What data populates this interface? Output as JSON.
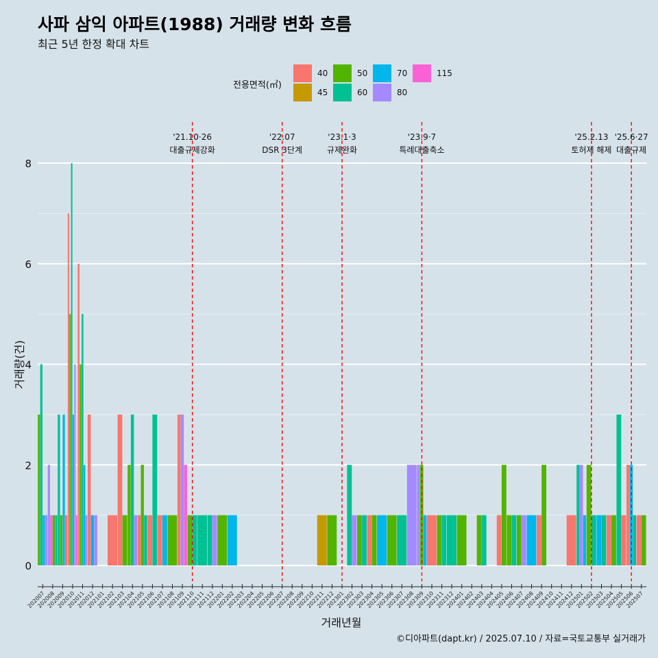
{
  "chart_data": {
    "type": "bar",
    "title": "사파 삼익 아파트(1988) 거래량 변화 흐름",
    "subtitle": "최근 5년 한정 확대 차트",
    "xlabel": "거래년월",
    "ylabel": "거래량(건)",
    "caption": "©디아파트(dapt.kr) / 2025.07.10 / 자료=국토교통부 실거래가",
    "ylim": [
      0,
      8
    ],
    "yticks": [
      0,
      2,
      4,
      6,
      8
    ],
    "legend": {
      "title": "전용면적(㎡)",
      "entries": [
        {
          "name": "40",
          "color": "#f8766d"
        },
        {
          "name": "45",
          "color": "#c49a00"
        },
        {
          "name": "50",
          "color": "#53b400"
        },
        {
          "name": "60",
          "color": "#00c094"
        },
        {
          "name": "70",
          "color": "#00b6eb"
        },
        {
          "name": "80",
          "color": "#a58aff"
        },
        {
          "name": "115",
          "color": "#fb61d7"
        }
      ]
    },
    "categories": [
      "202007",
      "202008",
      "202009",
      "202010",
      "202011",
      "202012",
      "202101",
      "202102",
      "202103",
      "202104",
      "202105",
      "202106",
      "202107",
      "202108",
      "202109",
      "202110",
      "202111",
      "202112",
      "202201",
      "202202",
      "202203",
      "202204",
      "202205",
      "202206",
      "202207",
      "202208",
      "202209",
      "202210",
      "202211",
      "202212",
      "202301",
      "202302",
      "202303",
      "202304",
      "202305",
      "202306",
      "202307",
      "202308",
      "202309",
      "202310",
      "202311",
      "202312",
      "202401",
      "202402",
      "202403",
      "202404",
      "202405",
      "202406",
      "202407",
      "202408",
      "202409",
      "202410",
      "202411",
      "202412",
      "202501",
      "202502",
      "202503",
      "202504",
      "202505",
      "202506",
      "202507"
    ],
    "data": [
      {
        "month": "202007",
        "bars": [
          [
            "50",
            3
          ],
          [
            "60",
            4
          ],
          [
            "70",
            1
          ],
          [
            "80",
            1
          ]
        ]
      },
      {
        "month": "202008",
        "bars": [
          [
            "80",
            2
          ],
          [
            "115",
            1
          ],
          [
            "50",
            1
          ],
          [
            "60",
            1
          ]
        ]
      },
      {
        "month": "202009",
        "bars": [
          [
            "60",
            3
          ],
          [
            "50",
            1
          ],
          [
            "70",
            3
          ],
          [
            "40",
            1
          ]
        ]
      },
      {
        "month": "202010",
        "bars": [
          [
            "40",
            7
          ],
          [
            "50",
            5
          ],
          [
            "60",
            8
          ],
          [
            "70",
            3
          ],
          [
            "80",
            4
          ],
          [
            "115",
            1
          ]
        ]
      },
      {
        "month": "202011",
        "bars": [
          [
            "40",
            6
          ],
          [
            "50",
            4
          ],
          [
            "60",
            5
          ],
          [
            "70",
            2
          ],
          [
            "80",
            1
          ]
        ]
      },
      {
        "month": "202012",
        "bars": [
          [
            "40",
            3
          ],
          [
            "70",
            1
          ],
          [
            "80",
            1
          ]
        ]
      },
      {
        "month": "202101",
        "bars": []
      },
      {
        "month": "202102",
        "bars": [
          [
            "40",
            1
          ]
        ]
      },
      {
        "month": "202103",
        "bars": [
          [
            "40",
            3
          ],
          [
            "50",
            1
          ]
        ]
      },
      {
        "month": "202104",
        "bars": [
          [
            "50",
            2
          ],
          [
            "60",
            3
          ],
          [
            "80",
            1
          ]
        ]
      },
      {
        "month": "202105",
        "bars": [
          [
            "40",
            1
          ],
          [
            "50",
            2
          ],
          [
            "60",
            1
          ]
        ]
      },
      {
        "month": "202106",
        "bars": [
          [
            "40",
            1
          ],
          [
            "60",
            3
          ]
        ]
      },
      {
        "month": "202107",
        "bars": [
          [
            "40",
            1
          ],
          [
            "70",
            1
          ]
        ]
      },
      {
        "month": "202108",
        "bars": [
          [
            "50",
            1
          ]
        ]
      },
      {
        "month": "202109",
        "bars": [
          [
            "40",
            3
          ],
          [
            "80",
            3
          ],
          [
            "115",
            2
          ]
        ]
      },
      {
        "month": "202110",
        "bars": [
          [
            "50",
            1
          ],
          [
            "60",
            1
          ]
        ]
      },
      {
        "month": "202111",
        "bars": [
          [
            "60",
            1
          ]
        ]
      },
      {
        "month": "202112",
        "bars": [
          [
            "60",
            1
          ],
          [
            "80",
            1
          ]
        ]
      },
      {
        "month": "202201",
        "bars": [
          [
            "50",
            1
          ]
        ]
      },
      {
        "month": "202202",
        "bars": [
          [
            "70",
            1
          ]
        ]
      },
      {
        "month": "202203",
        "bars": []
      },
      {
        "month": "202204",
        "bars": []
      },
      {
        "month": "202205",
        "bars": []
      },
      {
        "month": "202206",
        "bars": []
      },
      {
        "month": "202207",
        "bars": []
      },
      {
        "month": "202208",
        "bars": []
      },
      {
        "month": "202209",
        "bars": []
      },
      {
        "month": "202210",
        "bars": []
      },
      {
        "month": "202211",
        "bars": [
          [
            "45",
            1
          ]
        ]
      },
      {
        "month": "202212",
        "bars": [
          [
            "50",
            1
          ]
        ]
      },
      {
        "month": "202301",
        "bars": []
      },
      {
        "month": "202302",
        "bars": [
          [
            "60",
            2
          ],
          [
            "80",
            1
          ]
        ]
      },
      {
        "month": "202303",
        "bars": [
          [
            "50",
            1
          ],
          [
            "60",
            1
          ]
        ]
      },
      {
        "month": "202304",
        "bars": [
          [
            "40",
            1
          ],
          [
            "50",
            1
          ]
        ]
      },
      {
        "month": "202305",
        "bars": [
          [
            "70",
            1
          ]
        ]
      },
      {
        "month": "202306",
        "bars": [
          [
            "50",
            1
          ]
        ]
      },
      {
        "month": "202307",
        "bars": [
          [
            "60",
            1
          ]
        ]
      },
      {
        "month": "202308",
        "bars": [
          [
            "80",
            2
          ]
        ]
      },
      {
        "month": "202309",
        "bars": [
          [
            "80",
            2
          ],
          [
            "50",
            2
          ],
          [
            "70",
            1
          ]
        ]
      },
      {
        "month": "202310",
        "bars": [
          [
            "40",
            1
          ]
        ]
      },
      {
        "month": "202311",
        "bars": [
          [
            "50",
            1
          ],
          [
            "60",
            1
          ]
        ]
      },
      {
        "month": "202312",
        "bars": [
          [
            "60",
            1
          ]
        ]
      },
      {
        "month": "202401",
        "bars": [
          [
            "50",
            1
          ]
        ]
      },
      {
        "month": "202402",
        "bars": []
      },
      {
        "month": "202403",
        "bars": [
          [
            "50",
            1
          ],
          [
            "60",
            1
          ]
        ]
      },
      {
        "month": "202404",
        "bars": []
      },
      {
        "month": "202405",
        "bars": [
          [
            "40",
            1
          ],
          [
            "50",
            2
          ]
        ]
      },
      {
        "month": "202406",
        "bars": [
          [
            "50",
            1
          ],
          [
            "60",
            1
          ]
        ]
      },
      {
        "month": "202407",
        "bars": [
          [
            "50",
            1
          ],
          [
            "80",
            1
          ]
        ]
      },
      {
        "month": "202408",
        "bars": [
          [
            "70",
            1
          ]
        ]
      },
      {
        "month": "202409",
        "bars": [
          [
            "40",
            1
          ],
          [
            "50",
            2
          ]
        ]
      },
      {
        "month": "202410",
        "bars": []
      },
      {
        "month": "202411",
        "bars": []
      },
      {
        "month": "202412",
        "bars": [
          [
            "40",
            1
          ]
        ]
      },
      {
        "month": "202501",
        "bars": [
          [
            "60",
            2
          ],
          [
            "80",
            2
          ],
          [
            "70",
            1
          ]
        ]
      },
      {
        "month": "202502",
        "bars": [
          [
            "50",
            2
          ],
          [
            "60",
            1
          ]
        ]
      },
      {
        "month": "202503",
        "bars": [
          [
            "70",
            1
          ],
          [
            "60",
            1
          ]
        ]
      },
      {
        "month": "202504",
        "bars": [
          [
            "40",
            1
          ],
          [
            "50",
            1
          ]
        ]
      },
      {
        "month": "202505",
        "bars": [
          [
            "60",
            3
          ],
          [
            "40",
            1
          ]
        ]
      },
      {
        "month": "202506",
        "bars": [
          [
            "40",
            2
          ],
          [
            "70",
            2
          ],
          [
            "60",
            1
          ]
        ]
      },
      {
        "month": "202507",
        "bars": [
          [
            "40",
            1
          ],
          [
            "50",
            1
          ]
        ]
      }
    ],
    "events": [
      {
        "month": "202110",
        "date": "'21.10·26",
        "label": "대출규제강화"
      },
      {
        "month": "202207",
        "date": "'22.07",
        "label": "DSR 3단계"
      },
      {
        "month": "202301",
        "date": "'23.1·3",
        "label": "규제완화"
      },
      {
        "month": "202309",
        "date": "'23.9·7",
        "label": "특례대출축소"
      },
      {
        "month": "202502",
        "date": "'25.2.13",
        "label": "토허제 해제"
      },
      {
        "month": "202506",
        "date": "'25.6·27",
        "label": "대출규제"
      }
    ],
    "event_line_color": "#ff0000",
    "background_color": "#d6e2ea",
    "grid_color": "#ffffff"
  }
}
